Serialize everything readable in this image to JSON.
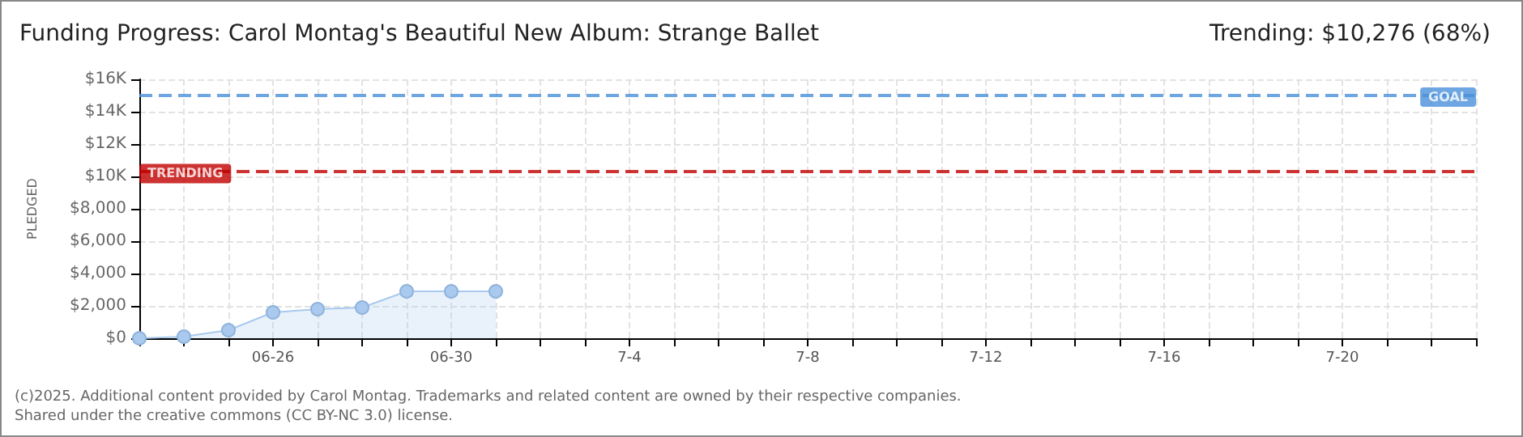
{
  "chart_data": {
    "type": "area",
    "title": "Funding Progress: Carol Montag's Beautiful New Album: Strange Ballet",
    "subtitle": "Trending: $10,276 (68%)",
    "ylabel": "PLEDGED",
    "x": [
      "2025-06-23",
      "2025-06-24",
      "2025-06-25",
      "2025-06-26",
      "2025-06-27",
      "2025-06-28",
      "2025-06-29",
      "2025-06-30",
      "2025-07-01"
    ],
    "series": [
      {
        "color": "#a9c9ee",
        "values": [
          0,
          100,
          500,
          1600,
          1800,
          1900,
          2900,
          2900,
          2900
        ]
      }
    ],
    "xlim": [
      "2025-06-23",
      "2025-07-23"
    ],
    "xticks": [
      {
        "value": "2025-06-23",
        "label": null
      },
      {
        "value": "2025-06-24",
        "label": null
      },
      {
        "value": "2025-06-25",
        "label": null
      },
      {
        "value": "2025-06-26",
        "label": "06-26"
      },
      {
        "value": "2025-06-27",
        "label": null
      },
      {
        "value": "2025-06-28",
        "label": null
      },
      {
        "value": "2025-06-29",
        "label": null
      },
      {
        "value": "2025-06-30",
        "label": "06-30"
      },
      {
        "value": "2025-07-01",
        "label": null
      },
      {
        "value": "2025-07-02",
        "label": null
      },
      {
        "value": "2025-07-03",
        "label": null
      },
      {
        "value": "2025-07-04",
        "label": "7-4"
      },
      {
        "value": "2025-07-05",
        "label": null
      },
      {
        "value": "2025-07-06",
        "label": null
      },
      {
        "value": "2025-07-07",
        "label": null
      },
      {
        "value": "2025-07-08",
        "label": "7-8"
      },
      {
        "value": "2025-07-09",
        "label": null
      },
      {
        "value": "2025-07-10",
        "label": null
      },
      {
        "value": "2025-07-11",
        "label": null
      },
      {
        "value": "2025-07-12",
        "label": "7-12"
      },
      {
        "value": "2025-07-13",
        "label": null
      },
      {
        "value": "2025-07-14",
        "label": null
      },
      {
        "value": "2025-07-15",
        "label": null
      },
      {
        "value": "2025-07-16",
        "label": "7-16"
      },
      {
        "value": "2025-07-17",
        "label": null
      },
      {
        "value": "2025-07-18",
        "label": null
      },
      {
        "value": "2025-07-19",
        "label": null
      },
      {
        "value": "2025-07-20",
        "label": "7-20"
      },
      {
        "value": "2025-07-21",
        "label": null
      },
      {
        "value": "2025-07-22",
        "label": null
      },
      {
        "value": "2025-07-23",
        "label": null
      }
    ],
    "ylim": [
      0,
      16000
    ],
    "yticks": [
      {
        "value": 0,
        "label": "$0"
      },
      {
        "value": 2000,
        "label": "$2,000"
      },
      {
        "value": 4000,
        "label": "$4,000"
      },
      {
        "value": 6000,
        "label": "$6,000"
      },
      {
        "value": 8000,
        "label": "$8,000"
      },
      {
        "value": 10000,
        "label": "$10K"
      },
      {
        "value": 12000,
        "label": "$12K"
      },
      {
        "value": 14000,
        "label": "$14K"
      },
      {
        "value": 16000,
        "label": "$16K"
      }
    ],
    "ref_lines": [
      {
        "axis": "y",
        "value": 15000,
        "label": "GOAL",
        "color": "#4a90d9",
        "line_style": "dashed"
      },
      {
        "axis": "y",
        "value": 10276,
        "label": "TRENDING",
        "color": "#c00000",
        "line_style": "dashed"
      }
    ],
    "grid": true,
    "marker": "circle",
    "line_style": "solid",
    "annotations": [
      "(c)2025. Additional content provided by Carol Montag. Trademarks and related content are owned by their respective companies.",
      "Shared under the creative commons (CC BY-NC 3.0) license."
    ]
  }
}
